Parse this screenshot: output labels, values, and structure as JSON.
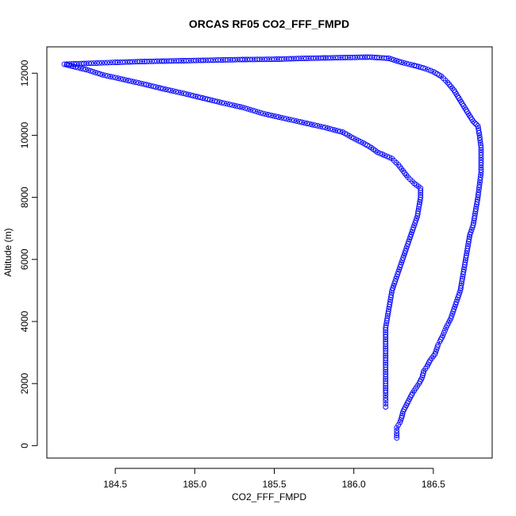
{
  "chart_data": {
    "type": "scatter",
    "title": "ORCAS RF05 CO2_FFF_FMPD",
    "xlabel": "CO2_FFF_FMPD",
    "ylabel": "Altitude (m)",
    "xlim": [
      184.07,
      186.87
    ],
    "ylim": [
      -400,
      12850
    ],
    "xticks": [
      184.5,
      185.0,
      185.5,
      186.0,
      186.5
    ],
    "xtick_labels": [
      "184.5",
      "185.0",
      "185.5",
      "186.0",
      "186.5"
    ],
    "yticks": [
      0,
      2000,
      4000,
      6000,
      8000,
      10000,
      12000
    ],
    "ytick_labels": [
      "0",
      "2000",
      "4000",
      "6000",
      "8000",
      "10000",
      "12000"
    ],
    "grid": false,
    "colors": {
      "series": "#0000ff",
      "axis": "#000000"
    },
    "series": [
      {
        "marker": "open-circle",
        "points": [
          [
            186.27,
            250
          ],
          [
            186.27,
            400
          ],
          [
            186.27,
            580
          ],
          [
            186.29,
            750
          ],
          [
            186.3,
            900
          ],
          [
            186.31,
            1100
          ],
          [
            186.33,
            1300
          ],
          [
            186.35,
            1500
          ],
          [
            186.37,
            1700
          ],
          [
            186.39,
            1850
          ],
          [
            186.41,
            2000
          ],
          [
            186.43,
            2200
          ],
          [
            186.44,
            2400
          ],
          [
            186.46,
            2550
          ],
          [
            186.48,
            2750
          ],
          [
            186.51,
            2950
          ],
          [
            186.53,
            3250
          ],
          [
            186.54,
            3350
          ],
          [
            186.56,
            3550
          ],
          [
            186.58,
            3800
          ],
          [
            186.61,
            4100
          ],
          [
            186.63,
            4400
          ],
          [
            186.65,
            4700
          ],
          [
            186.67,
            5000
          ],
          [
            186.68,
            5300
          ],
          [
            186.69,
            5600
          ],
          [
            186.7,
            5900
          ],
          [
            186.71,
            6200
          ],
          [
            186.72,
            6500
          ],
          [
            186.73,
            6800
          ],
          [
            186.75,
            7100
          ],
          [
            186.76,
            7400
          ],
          [
            186.77,
            7700
          ],
          [
            186.78,
            8000
          ],
          [
            186.79,
            8400
          ],
          [
            186.8,
            8800
          ],
          [
            186.8,
            9200
          ],
          [
            186.8,
            9600
          ],
          [
            186.79,
            10000
          ],
          [
            186.78,
            10300
          ],
          [
            186.75,
            10450
          ],
          [
            186.72,
            10700
          ],
          [
            186.69,
            10950
          ],
          [
            186.66,
            11200
          ],
          [
            186.63,
            11450
          ],
          [
            186.59,
            11700
          ],
          [
            186.55,
            11900
          ],
          [
            186.5,
            12050
          ],
          [
            186.45,
            12150
          ],
          [
            186.38,
            12250
          ],
          [
            186.3,
            12350
          ],
          [
            186.22,
            12480
          ],
          [
            186.1,
            12520
          ],
          [
            185.9,
            12500
          ],
          [
            185.7,
            12480
          ],
          [
            185.5,
            12450
          ],
          [
            185.3,
            12440
          ],
          [
            185.1,
            12420
          ],
          [
            184.9,
            12400
          ],
          [
            184.7,
            12380
          ],
          [
            184.5,
            12350
          ],
          [
            184.35,
            12320
          ],
          [
            184.18,
            12290
          ],
          [
            184.25,
            12200
          ],
          [
            184.33,
            12100
          ],
          [
            184.42,
            11950
          ],
          [
            184.55,
            11800
          ],
          [
            184.68,
            11650
          ],
          [
            184.8,
            11500
          ],
          [
            184.93,
            11350
          ],
          [
            185.05,
            11200
          ],
          [
            185.17,
            11050
          ],
          [
            185.3,
            10900
          ],
          [
            185.43,
            10700
          ],
          [
            185.56,
            10550
          ],
          [
            185.69,
            10400
          ],
          [
            185.82,
            10250
          ],
          [
            185.93,
            10100
          ],
          [
            186.0,
            9900
          ],
          [
            186.06,
            9750
          ],
          [
            186.11,
            9600
          ],
          [
            186.15,
            9450
          ],
          [
            186.24,
            9250
          ],
          [
            186.28,
            9050
          ],
          [
            186.31,
            8850
          ],
          [
            186.34,
            8650
          ],
          [
            186.38,
            8450
          ],
          [
            186.42,
            8300
          ],
          [
            186.42,
            8000
          ],
          [
            186.41,
            7700
          ],
          [
            186.4,
            7400
          ],
          [
            186.38,
            7100
          ],
          [
            186.36,
            6800
          ],
          [
            186.34,
            6500
          ],
          [
            186.32,
            6200
          ],
          [
            186.3,
            5900
          ],
          [
            186.28,
            5600
          ],
          [
            186.26,
            5300
          ],
          [
            186.24,
            5000
          ],
          [
            186.23,
            4700
          ],
          [
            186.22,
            4400
          ],
          [
            186.21,
            4100
          ],
          [
            186.2,
            3800
          ],
          [
            186.2,
            3500
          ],
          [
            186.2,
            3200
          ],
          [
            186.2,
            2900
          ],
          [
            186.2,
            2600
          ],
          [
            186.2,
            2300
          ],
          [
            186.2,
            2000
          ],
          [
            186.2,
            1700
          ],
          [
            186.2,
            1450
          ],
          [
            186.2,
            1250
          ]
        ]
      }
    ]
  }
}
